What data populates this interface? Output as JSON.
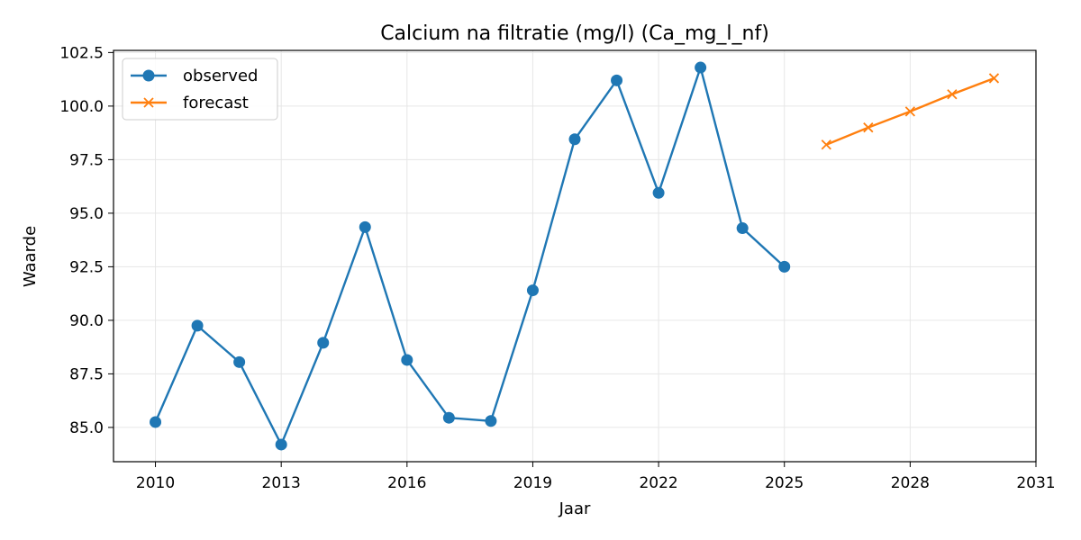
{
  "chart_data": {
    "type": "line",
    "title": "Calcium na filtratie (mg/l) (Ca_mg_l_nf)",
    "xlabel": "Jaar",
    "ylabel": "Waarde",
    "xlim": [
      2009,
      2031
    ],
    "ylim": [
      83.4,
      102.6
    ],
    "x_ticks": [
      2010,
      2013,
      2016,
      2019,
      2022,
      2025,
      2028,
      2031
    ],
    "y_ticks": [
      85.0,
      87.5,
      90.0,
      92.5,
      95.0,
      97.5,
      100.0,
      102.5
    ],
    "grid": true,
    "legend_position": "top-left",
    "series": [
      {
        "name": "observed",
        "color": "#1f77b4",
        "marker": "circle",
        "x": [
          2010,
          2011,
          2012,
          2013,
          2014,
          2015,
          2016,
          2017,
          2018,
          2019,
          2020,
          2021,
          2022,
          2023,
          2024,
          2025
        ],
        "y": [
          85.25,
          89.75,
          88.05,
          84.2,
          88.95,
          94.35,
          88.15,
          85.45,
          85.3,
          91.4,
          98.45,
          101.2,
          95.95,
          101.8,
          94.3,
          92.5
        ]
      },
      {
        "name": "forecast",
        "color": "#ff7f0e",
        "marker": "x",
        "x": [
          2026,
          2027,
          2028,
          2029,
          2030
        ],
        "y": [
          98.2,
          99.0,
          99.75,
          100.55,
          101.3
        ]
      }
    ]
  }
}
